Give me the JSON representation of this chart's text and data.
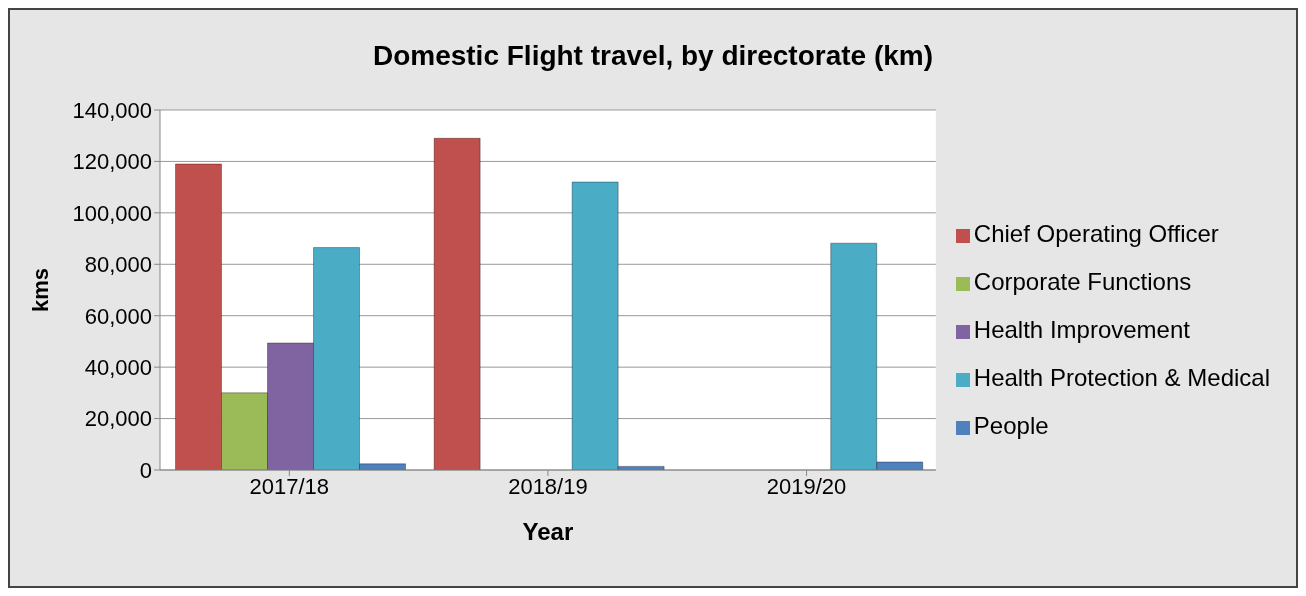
{
  "chart_data": {
    "type": "bar",
    "title": "Domestic Flight travel, by directorate (km)",
    "xlabel": "Year",
    "ylabel": "kms",
    "categories": [
      "2017/18",
      "2018/19",
      "2019/20"
    ],
    "series": [
      {
        "name": "Chief Operating Officer",
        "color": "#c0504d",
        "values": [
          119000,
          129000,
          null
        ]
      },
      {
        "name": "Corporate Functions",
        "color": "#9bbb59",
        "values": [
          30000,
          null,
          null
        ]
      },
      {
        "name": "Health Improvement",
        "color": "#8064a2",
        "values": [
          49400,
          null,
          null
        ]
      },
      {
        "name": "Health Protection & Medical",
        "color": "#4bacc6",
        "values": [
          86500,
          112000,
          88200
        ]
      },
      {
        "name": "People",
        "color": "#4f81bd",
        "values": [
          2400,
          1400,
          3100
        ]
      }
    ],
    "ylim": [
      0,
      140000
    ],
    "yticks": [
      0,
      {
        "value": 20000,
        "label": "20,000"
      },
      {
        "value": 40000,
        "label": "40,000"
      },
      {
        "value": 60000,
        "label": "60,000"
      },
      {
        "value": 80000,
        "label": "80,000"
      },
      {
        "value": 100000,
        "label": "100,000"
      },
      {
        "value": 120000,
        "label": "120,000"
      },
      {
        "value": 140000,
        "label": "140,000"
      }
    ],
    "grid": "y",
    "legend": "right"
  }
}
